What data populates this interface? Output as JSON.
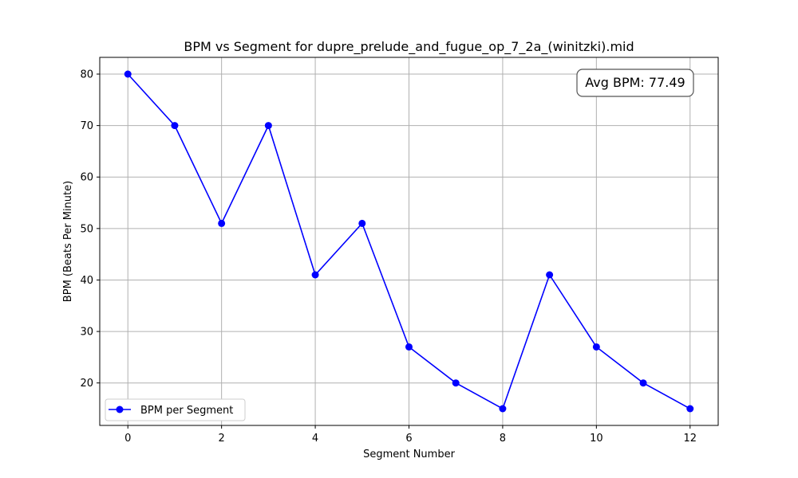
{
  "chart_data": {
    "type": "line",
    "title": "BPM vs Segment for dupre_prelude_and_fugue_op_7_2a_(winitzki).mid",
    "xlabel": "Segment Number",
    "ylabel": "BPM (Beats Per Minute)",
    "x": [
      0,
      1,
      2,
      3,
      4,
      5,
      6,
      7,
      8,
      9,
      10,
      11,
      12
    ],
    "series": [
      {
        "name": "BPM per Segment",
        "color": "#0000ff",
        "marker": "circle",
        "values": [
          80,
          70,
          51,
          70,
          41,
          51,
          27,
          20,
          15,
          41,
          27,
          20,
          15
        ]
      }
    ],
    "xlim": [
      -0.6,
      12.6
    ],
    "ylim": [
      11.75,
      83.25
    ],
    "xticks": [
      "0",
      "2",
      "4",
      "6",
      "8",
      "10",
      "12"
    ],
    "yticks": [
      "20",
      "30",
      "40",
      "50",
      "60",
      "70",
      "80"
    ],
    "grid": true,
    "legend_position": "lower-left",
    "annotation": "Avg BPM: 77.49"
  }
}
